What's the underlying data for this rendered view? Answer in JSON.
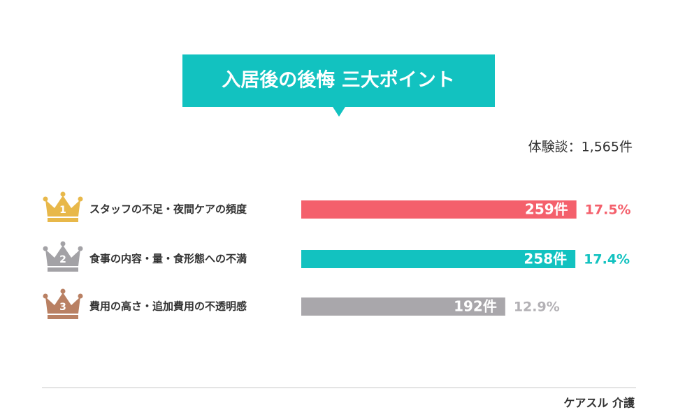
{
  "chart_data": {
    "type": "bar",
    "orientation": "horizontal",
    "title": "入居後の後悔 三大ポイント",
    "subtitle": "体験談：1,565件",
    "ranks": [
      "1",
      "2",
      "3"
    ],
    "rank_colors": [
      "#e8b84a",
      "#a3a2a6",
      "#b98063"
    ],
    "categories": [
      "スタッフの不足・夜間ケアの頻度",
      "食事の内容・量・食形態への不満",
      "費用の高さ・追加費用の不透明感"
    ],
    "values": [
      259,
      258,
      192
    ],
    "value_labels": [
      "259件",
      "258件",
      "192件"
    ],
    "colors": [
      "#f4606c",
      "#12c2c0",
      "#a9a7ab"
    ],
    "shares": {
      "values": [
        17.5,
        17.4,
        12.9
      ],
      "labels": [
        "17.5%",
        "17.4%",
        "12.9%"
      ],
      "colors": [
        "#f4606c",
        "#12c2c0",
        "#b3b1b5"
      ]
    },
    "xlim": [
      0,
      300
    ],
    "source": "ケアスル 介護"
  }
}
